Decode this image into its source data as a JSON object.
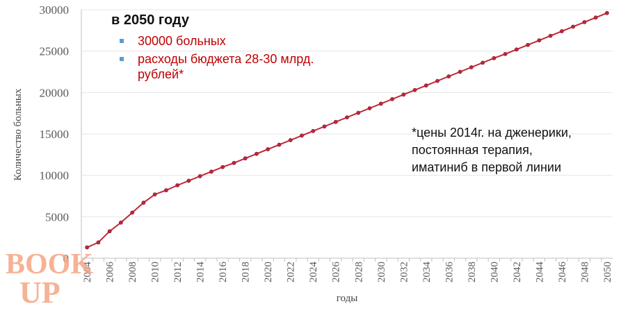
{
  "annotation": {
    "title": "в 2050 году",
    "bullets": [
      "30000 больных",
      "расходы бюджета 28-30 млрд. рублей*"
    ],
    "bullet_color": "#c00000",
    "marker_color": "#5b9bd5"
  },
  "footnote": {
    "lines": [
      "*цены 2014г. на дженерики,",
      "постоянная терапия,",
      "иматиниб в первой линии"
    ]
  },
  "watermark": {
    "text_top": "BOOK",
    "text_bottom": "UP",
    "color": "#f4a582"
  },
  "chart_data": {
    "type": "line",
    "title": "",
    "xlabel": "годы",
    "ylabel": "Количество больных",
    "ylim": [
      0,
      30000
    ],
    "yticks": [
      0,
      5000,
      10000,
      15000,
      20000,
      25000,
      30000
    ],
    "xlim": [
      2003.5,
      2050.5
    ],
    "xticks": [
      2004,
      2006,
      2008,
      2010,
      2012,
      2014,
      2016,
      2018,
      2020,
      2022,
      2024,
      2026,
      2028,
      2030,
      2032,
      2034,
      2036,
      2038,
      2040,
      2042,
      2044,
      2046,
      2048,
      2050
    ],
    "grid": true,
    "series": [
      {
        "color": "#c0263a",
        "x": [
          2004,
          2005,
          2006,
          2007,
          2008,
          2009,
          2010,
          2011,
          2012,
          2013,
          2014,
          2015,
          2016,
          2017,
          2018,
          2019,
          2020,
          2021,
          2022,
          2023,
          2024,
          2025,
          2026,
          2027,
          2028,
          2029,
          2030,
          2031,
          2032,
          2033,
          2034,
          2035,
          2036,
          2037,
          2038,
          2039,
          2040,
          2041,
          2042,
          2043,
          2044,
          2045,
          2046,
          2047,
          2048,
          2049,
          2050
        ],
        "values": [
          1300,
          1900,
          3250,
          4300,
          5500,
          6700,
          7700,
          8200,
          8800,
          9350,
          9900,
          10450,
          11000,
          11500,
          12050,
          12600,
          13150,
          13700,
          14250,
          14800,
          15350,
          15900,
          16450,
          17000,
          17550,
          18100,
          18650,
          19200,
          19750,
          20300,
          20850,
          21400,
          21950,
          22500,
          23050,
          23600,
          24150,
          24650,
          25200,
          25750,
          26300,
          26850,
          27400,
          27950,
          28500,
          29050,
          29600
        ]
      }
    ]
  }
}
